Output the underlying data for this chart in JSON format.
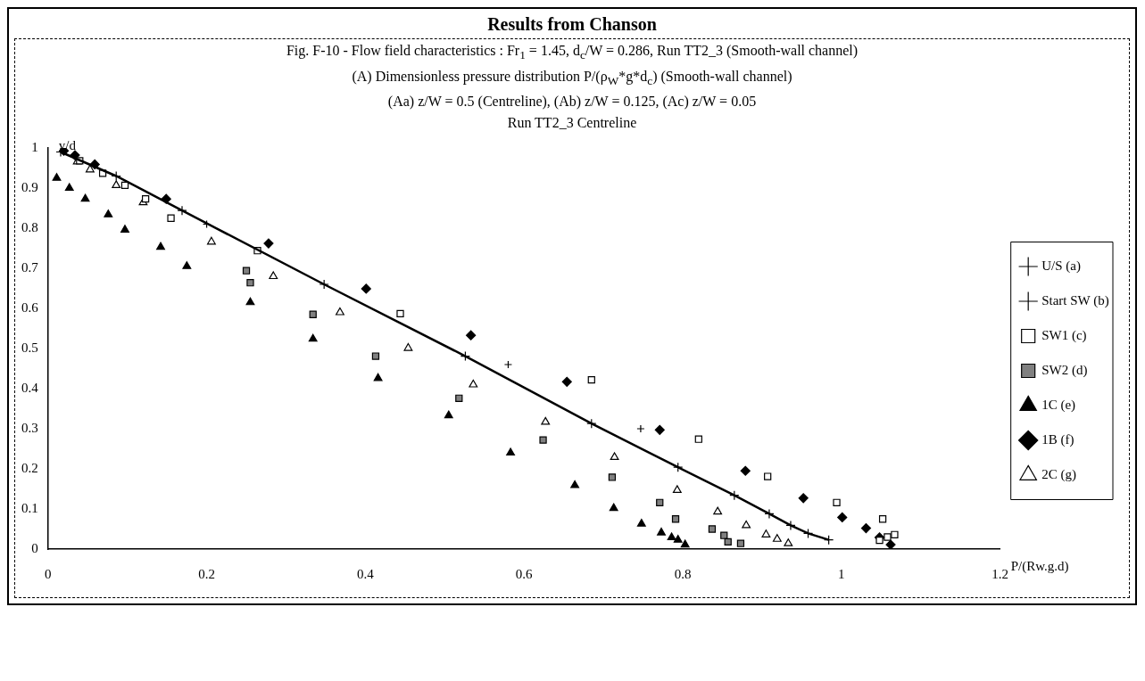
{
  "chart_data": {
    "type": "scatter",
    "title": "Results from Chanson",
    "subtitle": "Fig. F-10 - Flow field characteristics : Fr$_{1}$ = 1.45, d$_{c}$/W = 0.286, Run TT2_3 (Smooth-wall channel)",
    "annotations": [
      "(A) Dimensionless pressure distribution P/(ρ$_{W}$*g*d$_{c}$) (Smooth-wall channel)",
      "(Aa) z/W = 0.5 (Centreline), (Ab) z/W = 0.125, (Ac) z/W = 0.05",
      "Run TT2_3 Centreline"
    ],
    "xlabel": "P/(Rw.g.d)",
    "ylabel": "y/d",
    "xlim": [
      0,
      1.2
    ],
    "ylim": [
      0,
      1
    ],
    "xticks": [
      0,
      0.2,
      0.4,
      0.6,
      0.8,
      1,
      1.2
    ],
    "yticks": [
      0,
      0.1,
      0.2,
      0.3,
      0.4,
      0.5,
      0.6,
      0.7,
      0.8,
      0.9,
      1
    ],
    "grid": false,
    "legend": "right",
    "series": [
      {
        "name": "U/S (a)",
        "type": "line",
        "marker": "cross",
        "color": "#000000",
        "x": [
          0.016,
          0.086,
          0.169,
          0.348,
          0.526,
          0.685,
          0.794,
          0.865,
          0.909,
          0.936,
          0.958,
          0.984
        ],
        "values": [
          0.99,
          0.93,
          0.844,
          0.66,
          0.481,
          0.313,
          0.204,
          0.134,
          0.088,
          0.059,
          0.039,
          0.023
        ]
      },
      {
        "name": "Start SW (b)",
        "type": "scatter",
        "marker": "cross",
        "color": "#000000",
        "x": [
          0.2,
          0.58,
          0.747
        ],
        "values": [
          0.81,
          0.46,
          0.3
        ]
      },
      {
        "name": "SW1 (c)",
        "type": "scatter",
        "marker": "square",
        "color": "#ffffff",
        "x": [
          0.04,
          0.069,
          0.097,
          0.123,
          0.155,
          0.264,
          0.444,
          0.685,
          0.82,
          0.907,
          0.994,
          1.052,
          1.058,
          1.048,
          1.067
        ],
        "values": [
          0.968,
          0.937,
          0.907,
          0.873,
          0.825,
          0.744,
          0.587,
          0.422,
          0.274,
          0.181,
          0.116,
          0.075,
          0.03,
          0.022,
          0.036
        ]
      },
      {
        "name": "SW2 (d)",
        "type": "scatter",
        "marker": "square",
        "color": "#808080",
        "x": [
          0.25,
          0.255,
          0.334,
          0.413,
          0.518,
          0.624,
          0.711,
          0.771,
          0.791,
          0.837,
          0.852,
          0.857,
          0.873
        ],
        "values": [
          0.694,
          0.664,
          0.585,
          0.481,
          0.376,
          0.272,
          0.179,
          0.116,
          0.075,
          0.05,
          0.034,
          0.018,
          0.014
        ]
      },
      {
        "name": "1C (e)",
        "type": "scatter",
        "marker": "triangle",
        "color": "#000000",
        "x": [
          0.011,
          0.027,
          0.047,
          0.076,
          0.097,
          0.142,
          0.175,
          0.255,
          0.334,
          0.416,
          0.505,
          0.583,
          0.664,
          0.713,
          0.748,
          0.773,
          0.786,
          0.794,
          0.803
        ],
        "values": [
          0.925,
          0.9,
          0.873,
          0.834,
          0.796,
          0.753,
          0.705,
          0.615,
          0.524,
          0.426,
          0.333,
          0.24,
          0.159,
          0.102,
          0.063,
          0.041,
          0.029,
          0.023,
          0.011
        ]
      },
      {
        "name": "1B (f)",
        "type": "scatter",
        "marker": "diamond",
        "color": "#000000",
        "x": [
          0.02,
          0.034,
          0.059,
          0.149,
          0.278,
          0.401,
          0.533,
          0.654,
          0.771,
          0.879,
          0.952,
          1.001,
          1.031,
          1.048,
          1.062
        ],
        "values": [
          0.993,
          0.982,
          0.959,
          0.873,
          0.762,
          0.649,
          0.533,
          0.417,
          0.297,
          0.195,
          0.127,
          0.079,
          0.052,
          0.029,
          0.011
        ]
      },
      {
        "name": "2C (g)",
        "type": "scatter",
        "marker": "triangle",
        "color": "#ffffff",
        "x": [
          0.037,
          0.053,
          0.086,
          0.12,
          0.206,
          0.284,
          0.368,
          0.454,
          0.536,
          0.627,
          0.714,
          0.793,
          0.844,
          0.88,
          0.905,
          0.919,
          0.933
        ],
        "values": [
          0.966,
          0.946,
          0.907,
          0.864,
          0.766,
          0.68,
          0.59,
          0.501,
          0.41,
          0.317,
          0.229,
          0.147,
          0.093,
          0.059,
          0.036,
          0.025,
          0.014
        ]
      }
    ]
  }
}
